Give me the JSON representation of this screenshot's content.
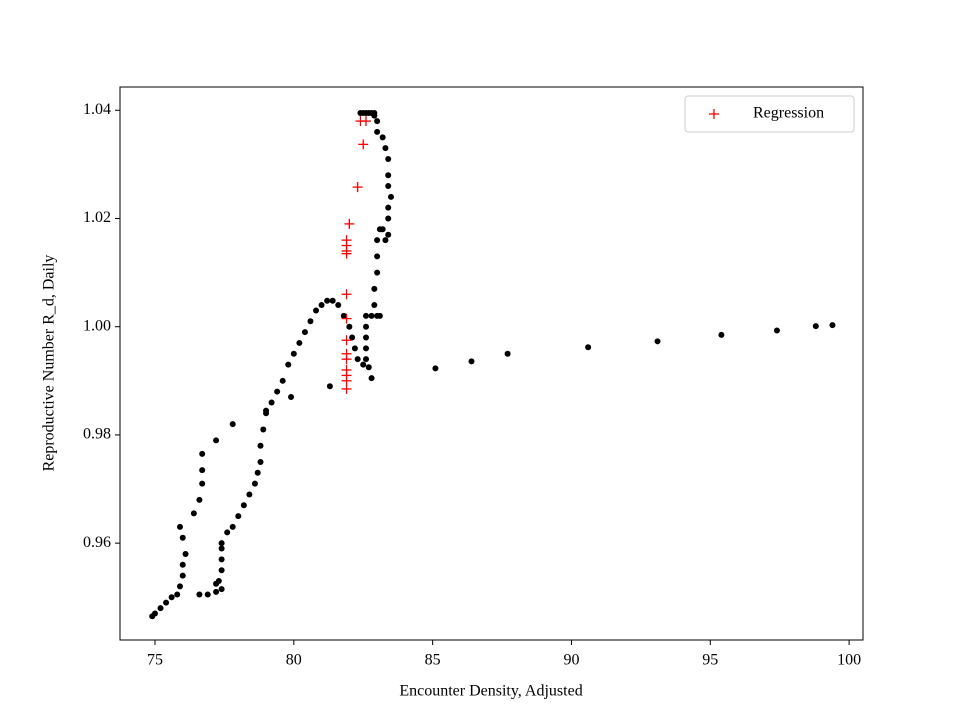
{
  "chart_data": {
    "type": "scatter",
    "xlabel": "Encounter Density, Adjusted",
    "ylabel": "Reproductive Number R_d, Daily",
    "xlim": [
      73.74,
      100.5
    ],
    "ylim": [
      0.9421,
      1.0443
    ],
    "xticks": [
      75,
      80,
      85,
      90,
      95,
      100
    ],
    "yticks": [
      {
        "value": 0.96,
        "label": "0.96"
      },
      {
        "value": 0.98,
        "label": "0.98"
      },
      {
        "value": 1.0,
        "label": "1.00"
      },
      {
        "value": 1.02,
        "label": "1.02"
      },
      {
        "value": 1.04,
        "label": "1.04"
      }
    ],
    "legend": "upper right",
    "series": [
      {
        "color": "#000000",
        "marker": "dot",
        "x": [
          74.9,
          75.0,
          75.2,
          75.4,
          75.6,
          75.8,
          75.9,
          76.0,
          76.0,
          76.1,
          76.0,
          75.9,
          76.4,
          76.6,
          76.7,
          76.7,
          76.7,
          77.2,
          77.8,
          76.6,
          76.9,
          77.2,
          77.4,
          77.3,
          77.2,
          77.4,
          77.4,
          77.4,
          77.4,
          77.6,
          77.8,
          78.0,
          78.2,
          78.4,
          78.6,
          78.7,
          78.8,
          78.8,
          78.9,
          79.0,
          79.2,
          79.4,
          79.6,
          79.8,
          80.0,
          80.2,
          80.4,
          80.6,
          80.8,
          81.0,
          81.2,
          81.4,
          81.6,
          81.8,
          82.0,
          82.1,
          82.2,
          82.3,
          82.5,
          82.7,
          82.8,
          82.6,
          82.6,
          82.6,
          82.6,
          82.6,
          82.8,
          83.0,
          83.1,
          82.9,
          82.9,
          83.0,
          83.0,
          83.0,
          83.1,
          83.3,
          83.4,
          83.2,
          83.4,
          83.4,
          83.5,
          83.4,
          83.4,
          83.4,
          83.3,
          83.2,
          83.0,
          83.0,
          82.9,
          82.7,
          82.5,
          82.4,
          82.6,
          82.8,
          82.9,
          79.9,
          79.0,
          81.3,
          85.1,
          86.4,
          87.7,
          90.6,
          93.1,
          95.4,
          97.4,
          98.8,
          99.4
        ],
        "values": [
          0.9465,
          0.947,
          0.948,
          0.949,
          0.95,
          0.9505,
          0.952,
          0.954,
          0.956,
          0.958,
          0.961,
          0.963,
          0.9655,
          0.968,
          0.971,
          0.9735,
          0.9765,
          0.979,
          0.982,
          0.9505,
          0.9505,
          0.951,
          0.9515,
          0.953,
          0.9525,
          0.955,
          0.957,
          0.959,
          0.96,
          0.962,
          0.963,
          0.965,
          0.967,
          0.969,
          0.971,
          0.973,
          0.975,
          0.978,
          0.981,
          0.984,
          0.986,
          0.988,
          0.99,
          0.993,
          0.995,
          0.997,
          0.999,
          1.001,
          1.003,
          1.004,
          1.0048,
          1.0048,
          1.004,
          1.002,
          1.0,
          0.998,
          0.996,
          0.994,
          0.993,
          0.9925,
          0.9905,
          0.994,
          0.996,
          0.998,
          1.0,
          1.002,
          1.002,
          1.002,
          1.002,
          1.004,
          1.007,
          1.01,
          1.013,
          1.016,
          1.018,
          1.016,
          1.017,
          1.018,
          1.02,
          1.022,
          1.024,
          1.026,
          1.028,
          1.031,
          1.033,
          1.035,
          1.036,
          1.038,
          1.0395,
          1.0395,
          1.0395,
          1.0395,
          1.0395,
          1.0395,
          1.039,
          0.987,
          0.9845,
          0.989,
          0.9923,
          0.9936,
          0.995,
          0.9962,
          0.9973,
          0.9985,
          0.9993,
          1.0001,
          1.0003
        ]
      },
      {
        "name": "Regression",
        "color": "#ff0000",
        "marker": "plus",
        "x": [
          81.9,
          81.9,
          81.9,
          81.9,
          81.9,
          81.9,
          81.9,
          81.9,
          81.9,
          81.9,
          81.9,
          81.9,
          81.9,
          82.0,
          82.3,
          82.5,
          82.4,
          82.6
        ],
        "values": [
          0.9885,
          0.99,
          0.991,
          0.992,
          0.994,
          0.995,
          0.9975,
          1.0015,
          1.006,
          1.0135,
          1.014,
          1.015,
          1.016,
          1.019,
          1.0258,
          1.0337,
          1.038,
          1.038
        ]
      }
    ]
  }
}
